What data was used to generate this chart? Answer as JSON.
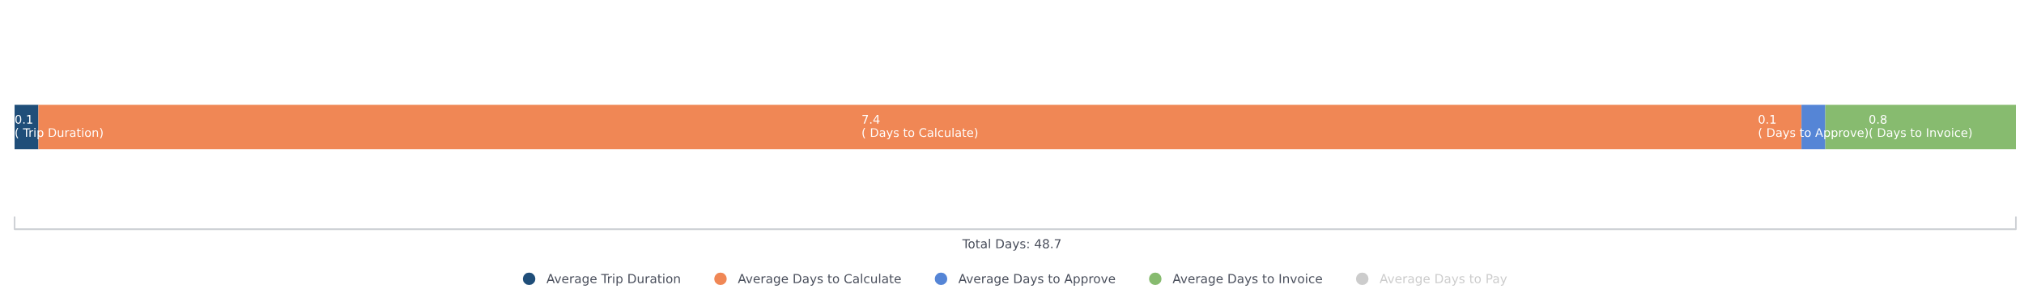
{
  "chart_data": {
    "type": "bar",
    "orientation": "horizontal",
    "stacked": true,
    "categories": [
      null
    ],
    "legend": "bottom",
    "series": [
      {
        "name": "Average Trip Duration",
        "color": "#1f4e79",
        "values": [
          0.1
        ],
        "value_labels": [
          "0.1\n( Trip Duration)"
        ]
      },
      {
        "name": "Average Days to Calculate",
        "color": "#f08755",
        "values": [
          7.4
        ],
        "value_labels": [
          "7.4\n( Days to Calculate)"
        ]
      },
      {
        "name": "Average Days to Approve",
        "color": "#5585d6",
        "values": [
          0.1
        ],
        "value_labels": [
          "0.1\n( Days to Approve)"
        ]
      },
      {
        "name": "Average Days to Invoice",
        "color": "#87bb6f",
        "values": [
          0.8
        ],
        "value_labels": [
          "0.8\n( Days to Invoice)"
        ]
      },
      {
        "name": "Average Days to Pay",
        "color": "#cccccc",
        "values": [
          null
        ]
      }
    ],
    "annotations": [
      "Total Days: 48.7"
    ]
  }
}
